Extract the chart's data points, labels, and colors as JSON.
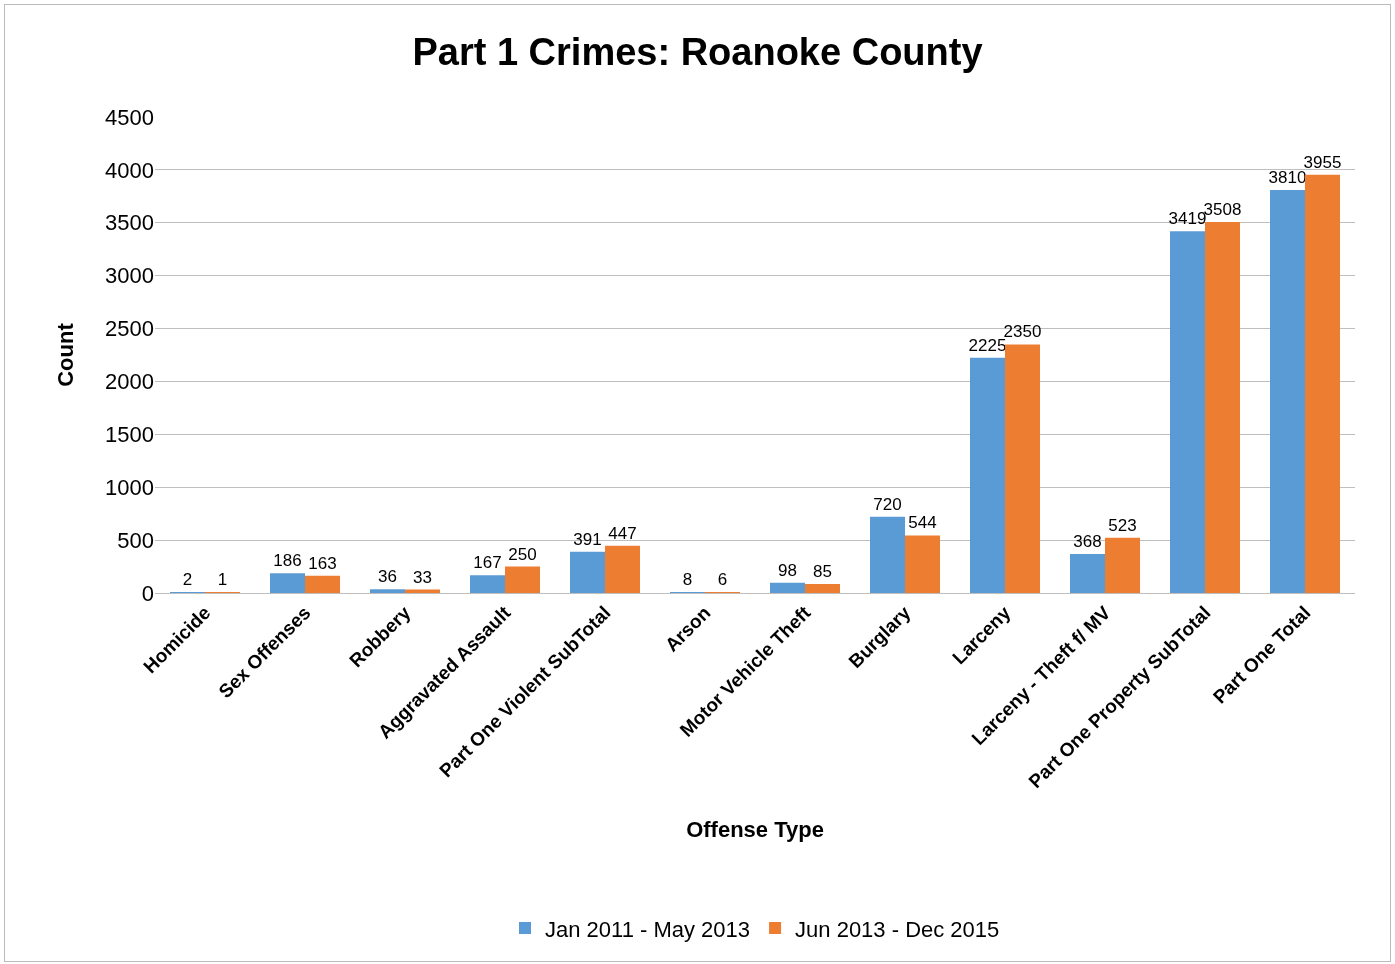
{
  "chart_data": {
    "type": "bar",
    "title": "Part 1 Crimes: Roanoke County",
    "xlabel": "Offense Type",
    "ylabel": "Count",
    "categories": [
      "Homicide",
      "Sex Offenses",
      "Robbery",
      "Aggravated Assault",
      "Part One Violent SubTotal",
      "Arson",
      "Motor Vehicle Theft",
      "Burglary",
      "Larceny",
      "Larceny - Theft f/ MV",
      "Part One Property SubTotal",
      "Part One Total"
    ],
    "series": [
      {
        "name": "Jan 2011 - May 2013",
        "color": "#5b9bd5",
        "values": [
          2,
          186,
          36,
          167,
          391,
          8,
          98,
          720,
          2225,
          368,
          3419,
          3810
        ]
      },
      {
        "name": "Jun 2013 - Dec 2015",
        "color": "#ed7d31",
        "values": [
          1,
          163,
          33,
          250,
          447,
          6,
          85,
          544,
          2350,
          523,
          3508,
          3955
        ]
      }
    ],
    "ylim": [
      0,
      4500
    ],
    "yticks": [
      0,
      500,
      1000,
      1500,
      2000,
      2500,
      3000,
      3500,
      4000,
      4500
    ],
    "grid": "y",
    "legend": "bottom",
    "data_labels": true
  }
}
